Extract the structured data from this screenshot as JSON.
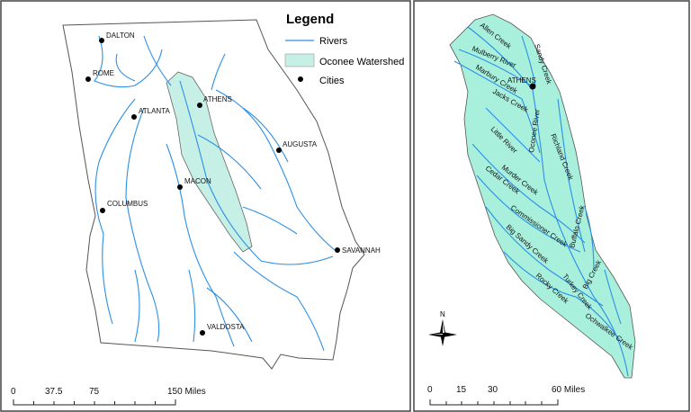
{
  "legend": {
    "title": "Legend",
    "items": [
      {
        "label": "Rivers",
        "symbol": "line",
        "color": "#2b8fe6"
      },
      {
        "label": "Oconee Watershed",
        "symbol": "fill",
        "color": "#c6f0e6"
      },
      {
        "label": "Cities",
        "symbol": "dot",
        "color": "#000000"
      }
    ]
  },
  "state_map": {
    "cities": [
      "DALTON",
      "ROME",
      "ATLANTA",
      "ATHENS",
      "AUGUSTA",
      "MACON",
      "COLUMBUS",
      "SAVANNAH",
      "VALDOSTA"
    ],
    "scale_bar": {
      "ticks": [
        "0",
        "37.5",
        "75",
        "150 Miles"
      ]
    }
  },
  "watershed_map": {
    "fill_color": "#a8f0dc",
    "city": "ATHENS",
    "streams": [
      "Allen Creek",
      "Sandy Creek",
      "Mulberry River",
      "Marbury Creek",
      "Jacks Creek",
      "Oconee River",
      "Richland Creek",
      "Little River",
      "Murder Creek",
      "Cedar Creek",
      "Commissioner Creek",
      "Buffalo Creek",
      "Big Sandy Creek",
      "Big Creek",
      "Turkey Creek",
      "Rocky Creek",
      "Ochwalkee Creek"
    ],
    "north_label": "N",
    "scale_bar": {
      "ticks": [
        "0",
        "15",
        "30",
        "60 Miles"
      ]
    }
  }
}
